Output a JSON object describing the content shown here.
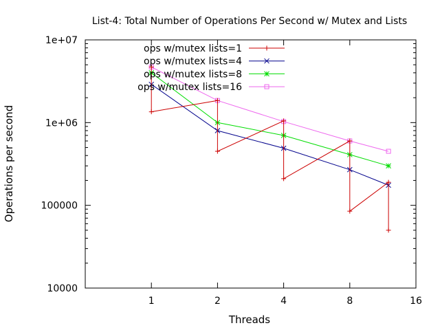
{
  "chart_data": {
    "type": "line",
    "title": "List-4: Total Number of Operations Per Second w/ Mutex and Lists",
    "xlabel": "Threads",
    "ylabel": "Operations per second",
    "x_scale": "log2",
    "y_scale": "log10",
    "xlim": [
      0.5,
      16
    ],
    "ylim": [
      10000,
      10000000
    ],
    "x_ticks": [
      {
        "value": 1,
        "label": "1"
      },
      {
        "value": 2,
        "label": "2"
      },
      {
        "value": 4,
        "label": "4"
      },
      {
        "value": 8,
        "label": "8"
      },
      {
        "value": 16,
        "label": "16"
      }
    ],
    "y_ticks": [
      {
        "value": 10000,
        "label": "10000"
      },
      {
        "value": 100000,
        "label": "100000"
      },
      {
        "value": 1000000,
        "label": "1e+06"
      },
      {
        "value": 10000000,
        "label": "1e+07"
      }
    ],
    "grid": false,
    "legend_position": "top-left",
    "series": [
      {
        "name": "ops w/mutex lists=1",
        "color": "#cc0000",
        "marker": "plus",
        "style": "zigzag-range",
        "x": [
          1,
          2,
          4,
          8,
          12
        ],
        "high": [
          4700000,
          1850000,
          1050000,
          600000,
          190000
        ],
        "low": [
          1350000,
          450000,
          210000,
          85000,
          50000
        ]
      },
      {
        "name": "ops w/mutex lists=4",
        "color": "#00008b",
        "marker": "cross",
        "x": [
          1,
          2,
          4,
          8,
          12
        ],
        "values": [
          2900000,
          800000,
          490000,
          270000,
          175000
        ]
      },
      {
        "name": "ops w/mutex lists=8",
        "color": "#00dd00",
        "marker": "star",
        "x": [
          1,
          2,
          4,
          8,
          12
        ],
        "values": [
          4000000,
          1000000,
          700000,
          410000,
          300000
        ]
      },
      {
        "name": "ops w/mutex lists=16",
        "color": "#ee66ee",
        "marker": "square",
        "x": [
          1,
          2,
          4,
          8,
          12
        ],
        "values": [
          4700000,
          1850000,
          1030000,
          600000,
          450000
        ]
      }
    ]
  }
}
